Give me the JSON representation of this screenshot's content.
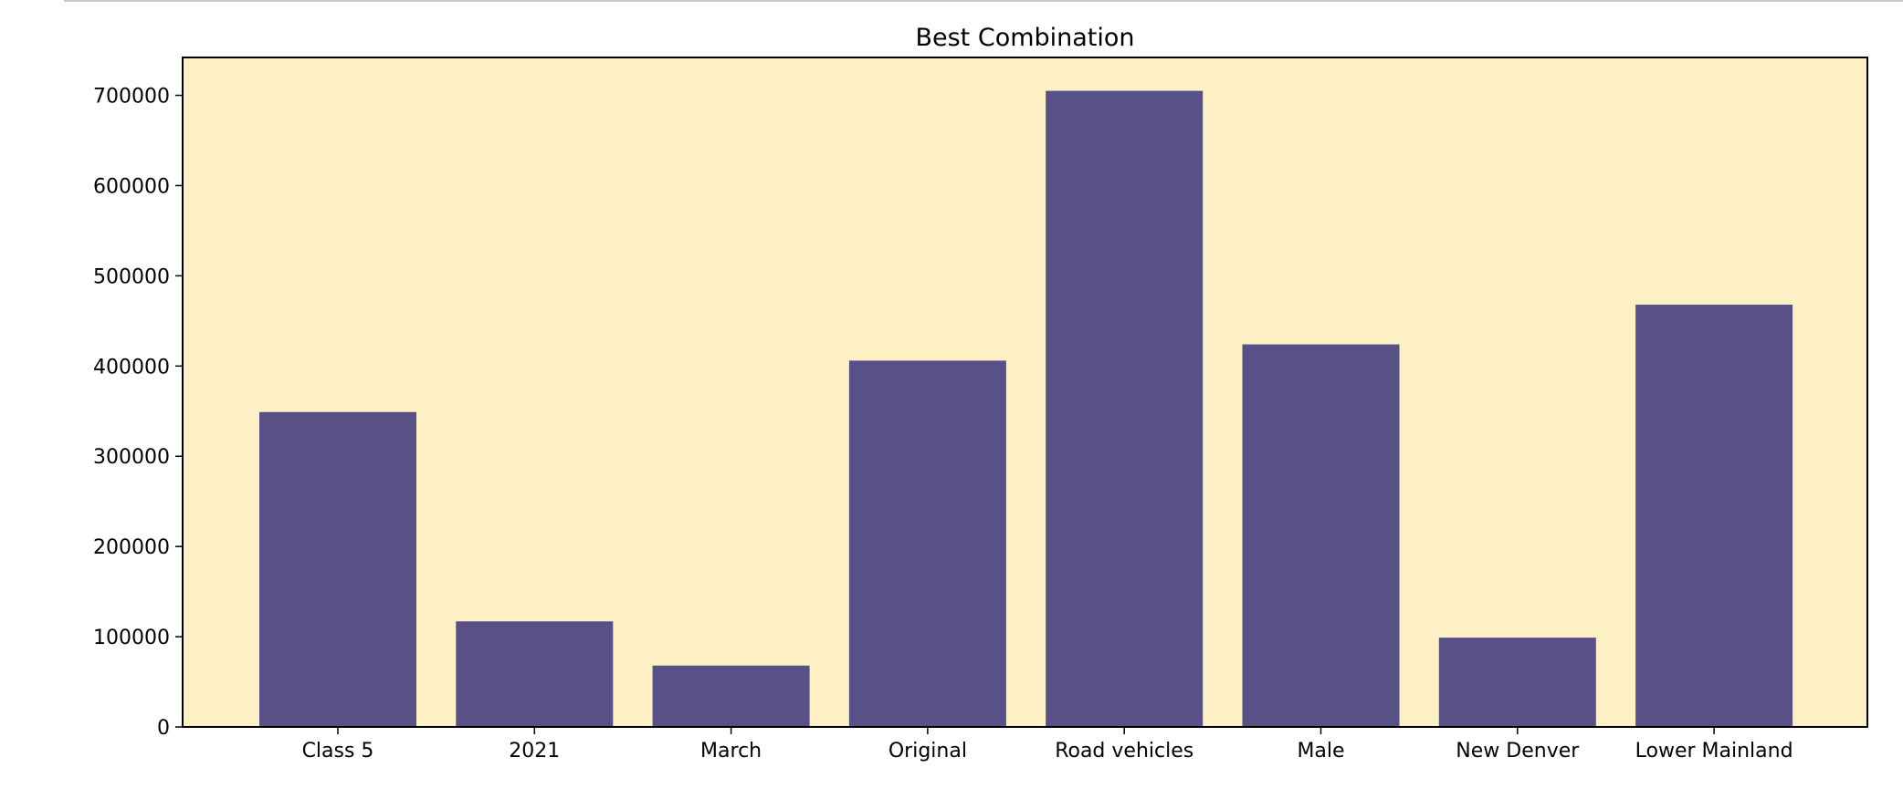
{
  "chart_data": {
    "type": "bar",
    "title": "Best Combination",
    "xlabel": "",
    "ylabel": "",
    "categories": [
      "Class 5",
      "2021",
      "March",
      "Original",
      "Road vehicles",
      "Male",
      "New Denver",
      "Lower Mainland"
    ],
    "values": [
      349000,
      117000,
      68000,
      406000,
      705000,
      424000,
      99000,
      468000
    ],
    "ylim": [
      0,
      742000
    ],
    "yticks": [
      0,
      100000,
      200000,
      300000,
      400000,
      500000,
      600000,
      700000
    ],
    "grid": false,
    "legend": "none",
    "colors": {
      "bar": "#575187",
      "plot_background": "#fdf0c4",
      "axis": "#000000"
    }
  }
}
